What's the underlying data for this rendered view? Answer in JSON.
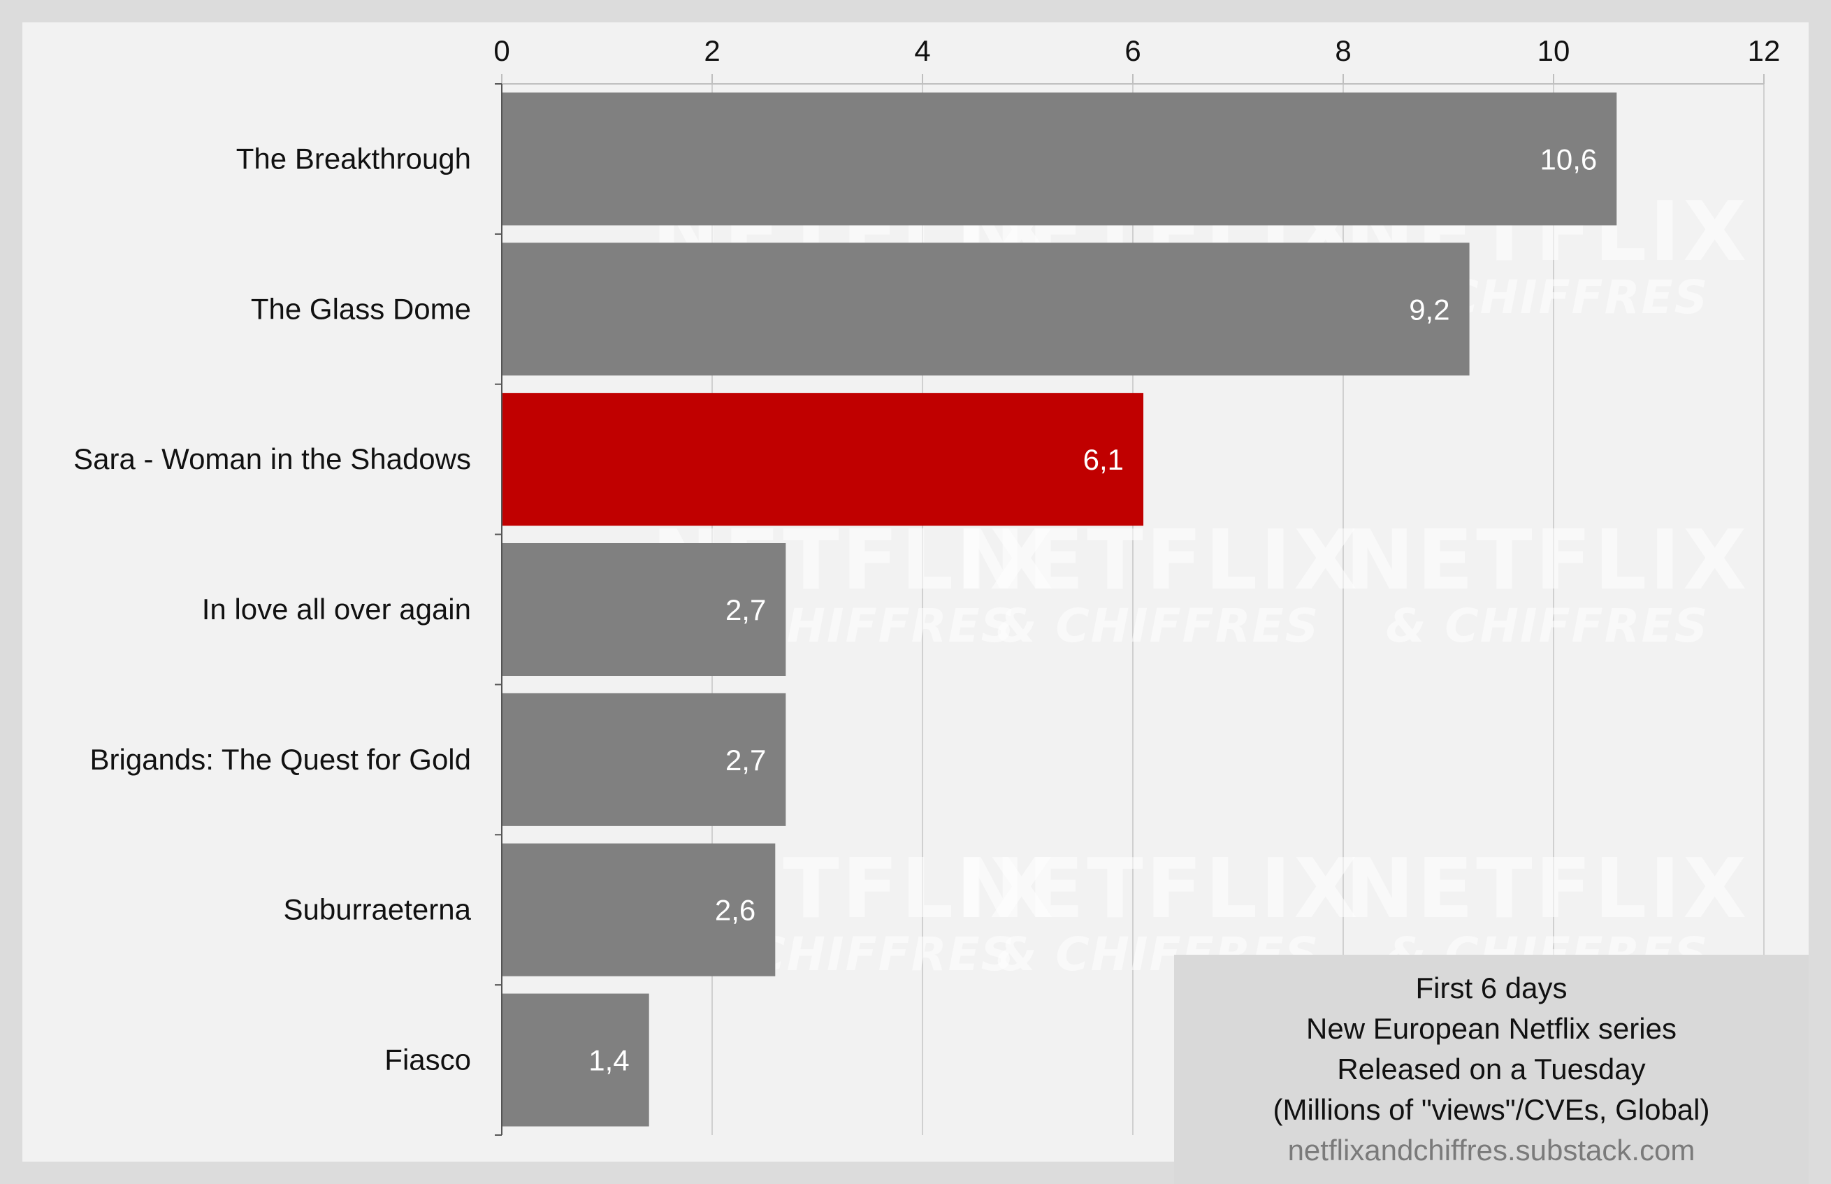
{
  "chart_data": {
    "type": "bar",
    "orientation": "horizontal",
    "categories": [
      "The Breakthrough",
      "The Glass Dome",
      "Sara - Woman in the Shadows",
      "In love all over again",
      "Brigands: The Quest for Gold",
      "Suburraeterna",
      "Fiasco"
    ],
    "values": [
      10.6,
      9.2,
      6.1,
      2.7,
      2.7,
      2.6,
      1.4
    ],
    "data_labels": [
      "10,6",
      "9,2",
      "6,1",
      "2,7",
      "2,7",
      "2,6",
      "1,4"
    ],
    "highlight_index": 2,
    "xlim": [
      0,
      12
    ],
    "x_ticks": [
      0,
      2,
      4,
      6,
      8,
      10,
      12
    ],
    "x_axis_position": "top",
    "grid": true,
    "colors": {
      "bar": "#808080",
      "highlight": "#c00000",
      "grid": "#d0d0d0"
    }
  },
  "legend": {
    "lines": [
      "First 6 days",
      "New European Netflix series",
      "Released on a Tuesday",
      "(Millions of \"views\"/CVEs, Global)"
    ],
    "source": "netflixandchiffres.substack.com",
    "placement": "bottom-right"
  },
  "watermark": {
    "main": "NETFLIX",
    "sub": "& CHIFFRES"
  }
}
